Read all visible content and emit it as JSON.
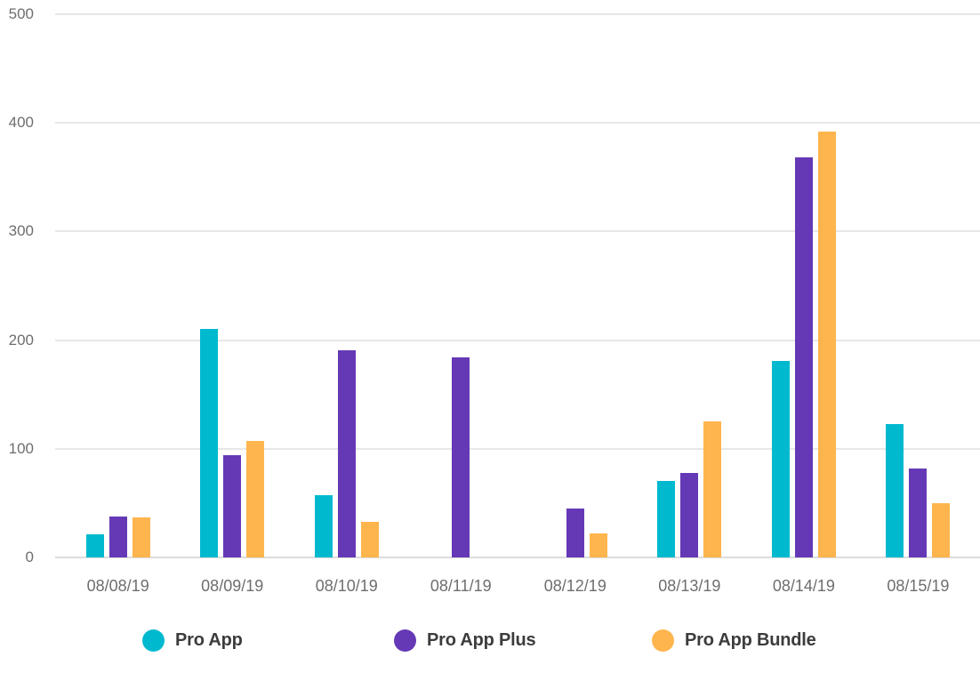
{
  "chart_data": {
    "type": "bar",
    "title": "",
    "xlabel": "",
    "ylabel": "",
    "categories": [
      "08/08/19",
      "08/09/19",
      "08/10/19",
      "08/11/19",
      "08/12/19",
      "08/13/19",
      "08/14/19",
      "08/15/19"
    ],
    "series": [
      {
        "name": "Pro App",
        "color": "#00b9cf",
        "values": [
          21,
          210,
          57,
          0,
          0,
          70,
          181,
          123
        ]
      },
      {
        "name": "Pro App Plus",
        "color": "#6539b6",
        "values": [
          38,
          94,
          191,
          184,
          45,
          78,
          368,
          82
        ]
      },
      {
        "name": "Pro App Bundle",
        "color": "#ffb54d",
        "values": [
          37,
          107,
          33,
          0,
          22,
          125,
          392,
          50
        ]
      }
    ],
    "ylim": [
      0,
      500
    ],
    "y_ticks": [
      "0",
      "100",
      "200",
      "300",
      "400",
      "500"
    ],
    "grid": "horizontal-only",
    "legend_position": "bottom"
  },
  "colors": {
    "background": "#ffffff",
    "gridline": "#e7e7e7",
    "axis_line": "#dcdcdc",
    "tick_text": "#6e6e6e",
    "legend_text": "#3c3c3c"
  }
}
